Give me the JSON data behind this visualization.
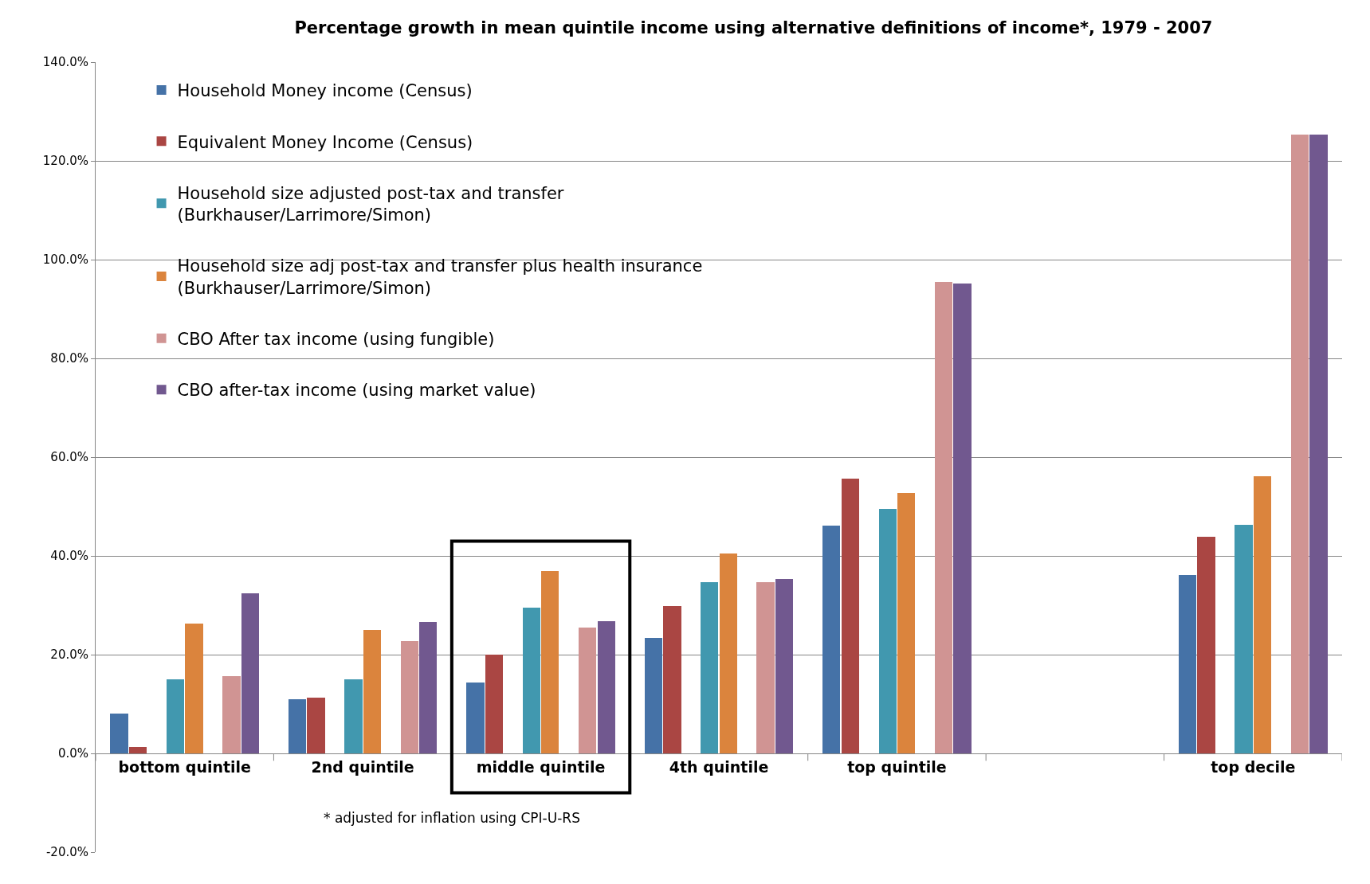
{
  "chart_data": {
    "type": "bar",
    "title": "Percentage growth in mean quintile income using alternative definitions of income*, 1979 - 2007",
    "categories": [
      "bottom quintile",
      "2nd quintile",
      "middle quintile",
      "4th quintile",
      "top quintile",
      null,
      "top decile"
    ],
    "series": [
      {
        "name": "Household Money income (Census)",
        "color": "#4572a7",
        "values": [
          8.0,
          10.9,
          14.3,
          23.4,
          46.1,
          null,
          36.1
        ]
      },
      {
        "name": "Equivalent Money Income (Census)",
        "color": "#aa4643",
        "values": [
          1.3,
          11.3,
          20.0,
          29.8,
          55.7,
          null,
          43.8
        ]
      },
      {
        "name": "Household size adjusted post-tax and transfer\n(Burkhauser/Larrimore/Simon)",
        "color": "#4198af",
        "values": [
          15.0,
          15.0,
          29.5,
          34.6,
          49.5,
          null,
          46.3
        ]
      },
      {
        "name": "Household size adj post-tax and transfer plus health insurance\n(Burkhauser/Larrimore/Simon)",
        "color": "#db843d",
        "values": [
          26.3,
          25.0,
          37.0,
          40.5,
          52.7,
          null,
          56.1
        ]
      },
      {
        "name": "CBO After tax income (using fungible)",
        "color": "#d09493",
        "values": [
          15.7,
          22.7,
          25.5,
          34.6,
          95.5,
          null,
          125.4
        ]
      },
      {
        "name": "CBO after-tax income (using market value)",
        "color": "#71588f",
        "values": [
          32.5,
          26.6,
          26.8,
          35.4,
          95.2,
          null,
          125.4
        ]
      }
    ],
    "ylim": [
      -20,
      140
    ],
    "yticks": [
      {
        "value": -20,
        "label": "-20.0%"
      },
      {
        "value": 0,
        "label": "0.0%"
      },
      {
        "value": 20,
        "label": "20.0%"
      },
      {
        "value": 40,
        "label": "40.0%"
      },
      {
        "value": 60,
        "label": "60.0%"
      },
      {
        "value": 80,
        "label": "80.0%"
      },
      {
        "value": 100,
        "label": "100.0%"
      },
      {
        "value": 120,
        "label": "120.0%"
      },
      {
        "value": 140,
        "label": "140.0%"
      }
    ],
    "grid": "y",
    "legend": "top left",
    "annotations": [
      "* adjusted for inflation using CPI-U-RS"
    ]
  }
}
